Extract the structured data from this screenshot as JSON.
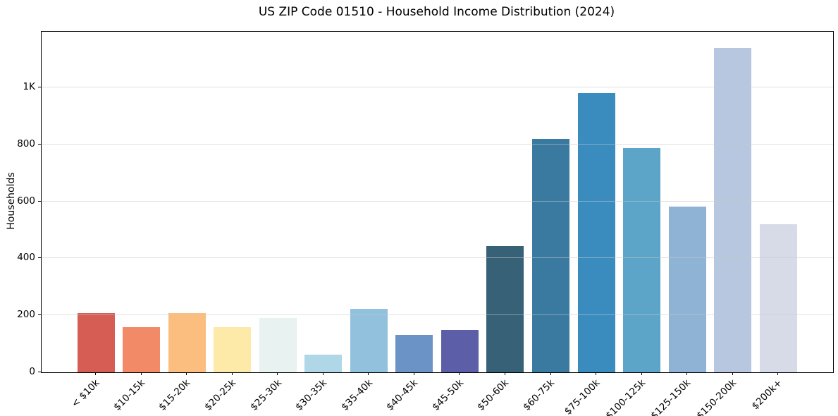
{
  "chart_data": {
    "type": "bar",
    "title": "US ZIP Code 01510 - Household Income Distribution (2024)",
    "xlabel": "",
    "ylabel": "Households",
    "categories": [
      "< $10k",
      "$10-15k",
      "$15-20k",
      "$20-25k",
      "$25-30k",
      "$30-35k",
      "$35-40k",
      "$40-45k",
      "$45-50k",
      "$50-60k",
      "$60-75k",
      "$75-100k",
      "$100-125k",
      "$125-150k",
      "$150-200k",
      "$200k+"
    ],
    "values": [
      207,
      159,
      207,
      159,
      190,
      62,
      223,
      131,
      149,
      444,
      820,
      981,
      788,
      582,
      1138,
      519
    ],
    "bar_colors": [
      "#d65d54",
      "#f28a67",
      "#fcbe7e",
      "#fdeaa8",
      "#e8f2f0",
      "#b0d7e8",
      "#92c1de",
      "#6b93c6",
      "#5c5fa8",
      "#366177",
      "#3a7aa1",
      "#3a8cbf",
      "#5ca4c8",
      "#8fb3d5",
      "#b7c7e0",
      "#d7dbe8"
    ],
    "ylim": [
      0,
      1196
    ],
    "yticks": [
      {
        "label": "0",
        "value": 0
      },
      {
        "label": "200",
        "value": 200
      },
      {
        "label": "400",
        "value": 400
      },
      {
        "label": "600",
        "value": 600
      },
      {
        "label": "800",
        "value": 800
      },
      {
        "label": "1K",
        "value": 1000
      }
    ],
    "grid": "horizontal",
    "grid_over_bars": true,
    "legend": "none",
    "spine_color": "#000000",
    "background_color": "#ffffff",
    "gridline_color": "#e8e8e8"
  }
}
